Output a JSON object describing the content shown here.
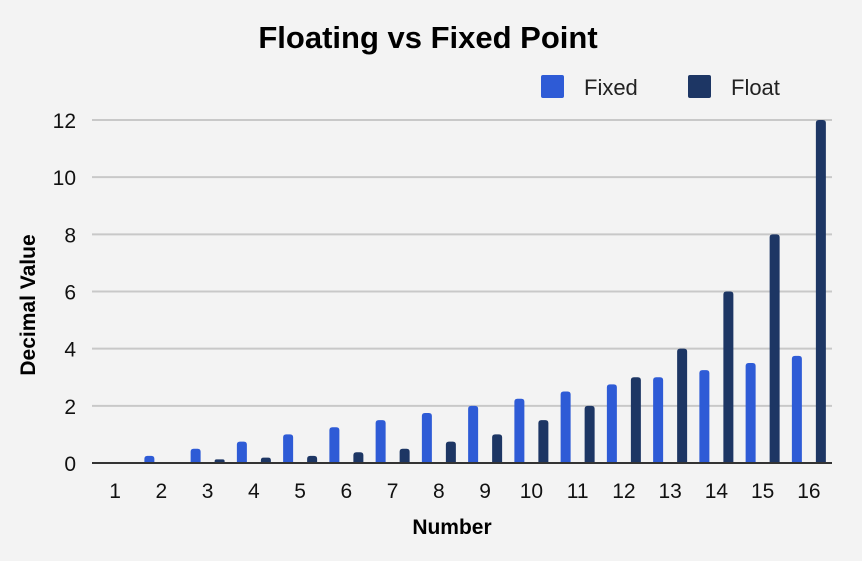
{
  "chart_data": {
    "type": "bar",
    "title": "Floating vs Fixed Point",
    "xlabel": "Number",
    "ylabel": "Decimal Value",
    "categories": [
      "1",
      "2",
      "3",
      "4",
      "5",
      "6",
      "7",
      "8",
      "9",
      "10",
      "11",
      "12",
      "13",
      "14",
      "15",
      "16"
    ],
    "series": [
      {
        "name": "Fixed",
        "color": "#2e5bd6",
        "values": [
          0,
          0.25,
          0.5,
          0.75,
          1.0,
          1.25,
          1.5,
          1.75,
          2.0,
          2.25,
          2.5,
          2.75,
          3.0,
          3.25,
          3.5,
          3.75
        ]
      },
      {
        "name": "Float",
        "color": "#1d3664",
        "values": [
          0,
          0,
          0.125,
          0.1875,
          0.25,
          0.375,
          0.5,
          0.75,
          1.0,
          1.5,
          2.0,
          3.0,
          4.0,
          6.0,
          8.0,
          12.0
        ]
      }
    ],
    "ylim": [
      0,
      12
    ],
    "yticks": [
      "0",
      "2",
      "4",
      "6",
      "8",
      "10",
      "12"
    ],
    "grid": true,
    "legend_position": "top-right"
  }
}
